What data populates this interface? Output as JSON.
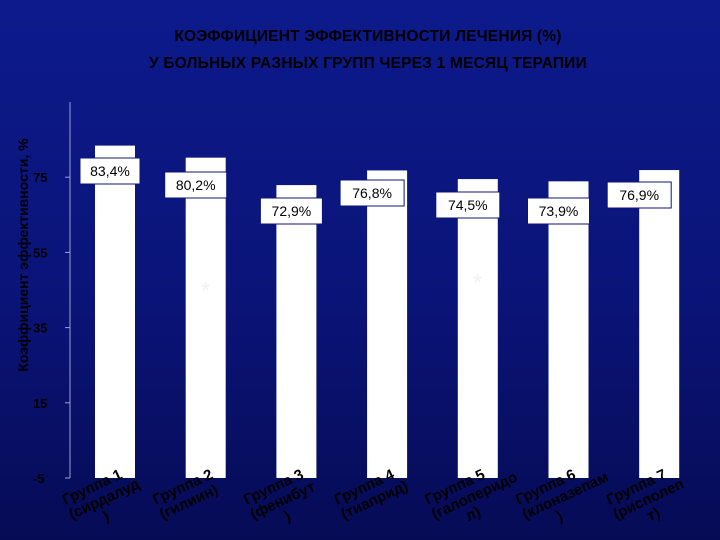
{
  "chart_data": {
    "type": "bar",
    "title": "КОЭФФИЦИЕНТ ЭФФЕКТИВНОСТИ ЛЕЧЕНИЯ (%)",
    "subtitle": "У БОЛЬНЫХ РАЗНЫХ ГРУПП ЧЕРЕЗ 1 МЕСЯЦ ТЕРАПИИ",
    "ylabel": "Коэффициент эффективности, %",
    "xlabel": "",
    "ylim": [
      -5,
      95
    ],
    "yticks": [
      "75",
      "55",
      "35",
      "15",
      "-5"
    ],
    "ytick_values": [
      75,
      55,
      35,
      15,
      -5
    ],
    "categories": [
      [
        "Группа 1",
        "(сирдалуд",
        ")"
      ],
      [
        "Группа 2",
        "(гилиин)"
      ],
      [
        "Группа 3",
        "(фенибут",
        ")"
      ],
      [
        "Группа 4",
        "(тиаприд)"
      ],
      [
        "Группа 5",
        "(галоперидо",
        "л)"
      ],
      [
        "Группа 6",
        "(клоназепам",
        ")"
      ],
      [
        "Группа 7",
        "(рисполеп",
        "т)"
      ]
    ],
    "values": [
      83.4,
      80.2,
      72.9,
      76.8,
      74.5,
      73.9,
      76.9
    ],
    "data_labels": [
      "83,4%",
      "80,2%",
      "72,9%",
      "76,8%",
      "74,5%",
      "73,9%",
      "76,9%"
    ],
    "annotations": [
      {
        "text": "*",
        "category_index": 1
      },
      {
        "text": "*",
        "category_index": 4
      }
    ],
    "grid": false,
    "legend": "none",
    "colors": {
      "background": "#0a1478",
      "bar": "#ffffff",
      "label_box": "#ffffff",
      "text": "#000000"
    }
  }
}
